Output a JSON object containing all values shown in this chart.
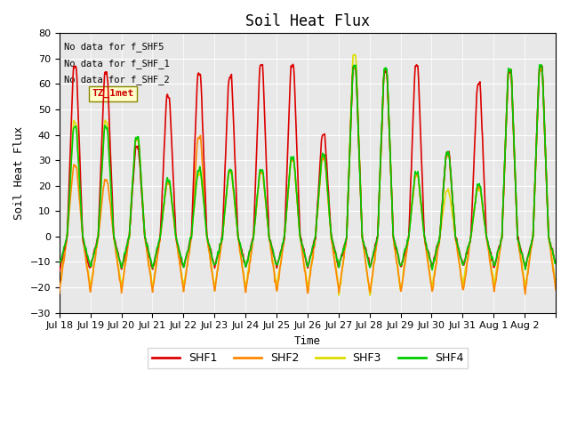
{
  "title": "Soil Heat Flux",
  "xlabel": "Time",
  "ylabel": "Soil Heat Flux",
  "ylim": [
    -30,
    80
  ],
  "yticks": [
    -30,
    -20,
    -10,
    0,
    10,
    20,
    30,
    40,
    50,
    60,
    70,
    80
  ],
  "bg_color": "#e8e8e8",
  "fig_color": "#ffffff",
  "no_data_texts": [
    "No data for f_SHF5",
    "No data for f_SHF_1",
    "No data for f_SHF_2"
  ],
  "tz_label": "TZ_1met",
  "legend": [
    {
      "label": "SHF1",
      "color": "#dd0000"
    },
    {
      "label": "SHF2",
      "color": "#ff8800"
    },
    {
      "label": "SHF3",
      "color": "#dddd00"
    },
    {
      "label": "SHF4",
      "color": "#00cc00"
    }
  ],
  "xticklabels": [
    "Jul 18",
    "Jul 19",
    "Jul 20",
    "Jul 21",
    "Jul 22",
    "Jul 23",
    "Jul 24",
    "Jul 25",
    "Jul 26",
    "Jul 27",
    "Jul 28",
    "Jul 29",
    "Jul 30",
    "Jul 31",
    "Aug 1",
    "Aug 2"
  ],
  "start_day": 0,
  "n_days": 16,
  "hours_per_day": 24,
  "shf1_peaks": [
    67,
    64,
    35,
    55,
    64,
    63,
    67,
    67,
    40,
    67,
    65,
    67,
    33,
    60,
    65,
    67
  ],
  "shf2_peaks": [
    28,
    22,
    38,
    21,
    39,
    26,
    25,
    30,
    31,
    66,
    65,
    24,
    32,
    19,
    65,
    66
  ],
  "shf3_peaks": [
    45,
    45,
    38,
    21,
    25,
    25,
    25,
    30,
    31,
    71,
    65,
    24,
    18,
    19,
    65,
    66
  ],
  "shf4_peaks": [
    43,
    43,
    39,
    22,
    26,
    26,
    26,
    31,
    32,
    67,
    66,
    25,
    33,
    20,
    66,
    67
  ],
  "shf1_troughs": [
    -14,
    -12,
    -13,
    -13,
    -12,
    -12,
    -12,
    -12,
    -12,
    -12,
    -12,
    -12,
    -12,
    -12,
    -12,
    -12
  ],
  "shf2_troughs": [
    -22,
    -22,
    -22,
    -22,
    -22,
    -22,
    -22,
    -22,
    -22,
    -22,
    -22,
    -22,
    -22,
    -22,
    -22,
    -22
  ],
  "shf3_troughs": [
    -20,
    -20,
    -20,
    -20,
    -20,
    -20,
    -20,
    -20,
    -20,
    -23,
    -23,
    -20,
    -20,
    -19,
    -19,
    -20
  ],
  "shf4_troughs": [
    -12,
    -12,
    -12,
    -12,
    -12,
    -12,
    -12,
    -12,
    -12,
    -12,
    -12,
    -12,
    -12,
    -12,
    -12,
    -12
  ],
  "grid_color": "#ffffff",
  "line_width": 1.2
}
